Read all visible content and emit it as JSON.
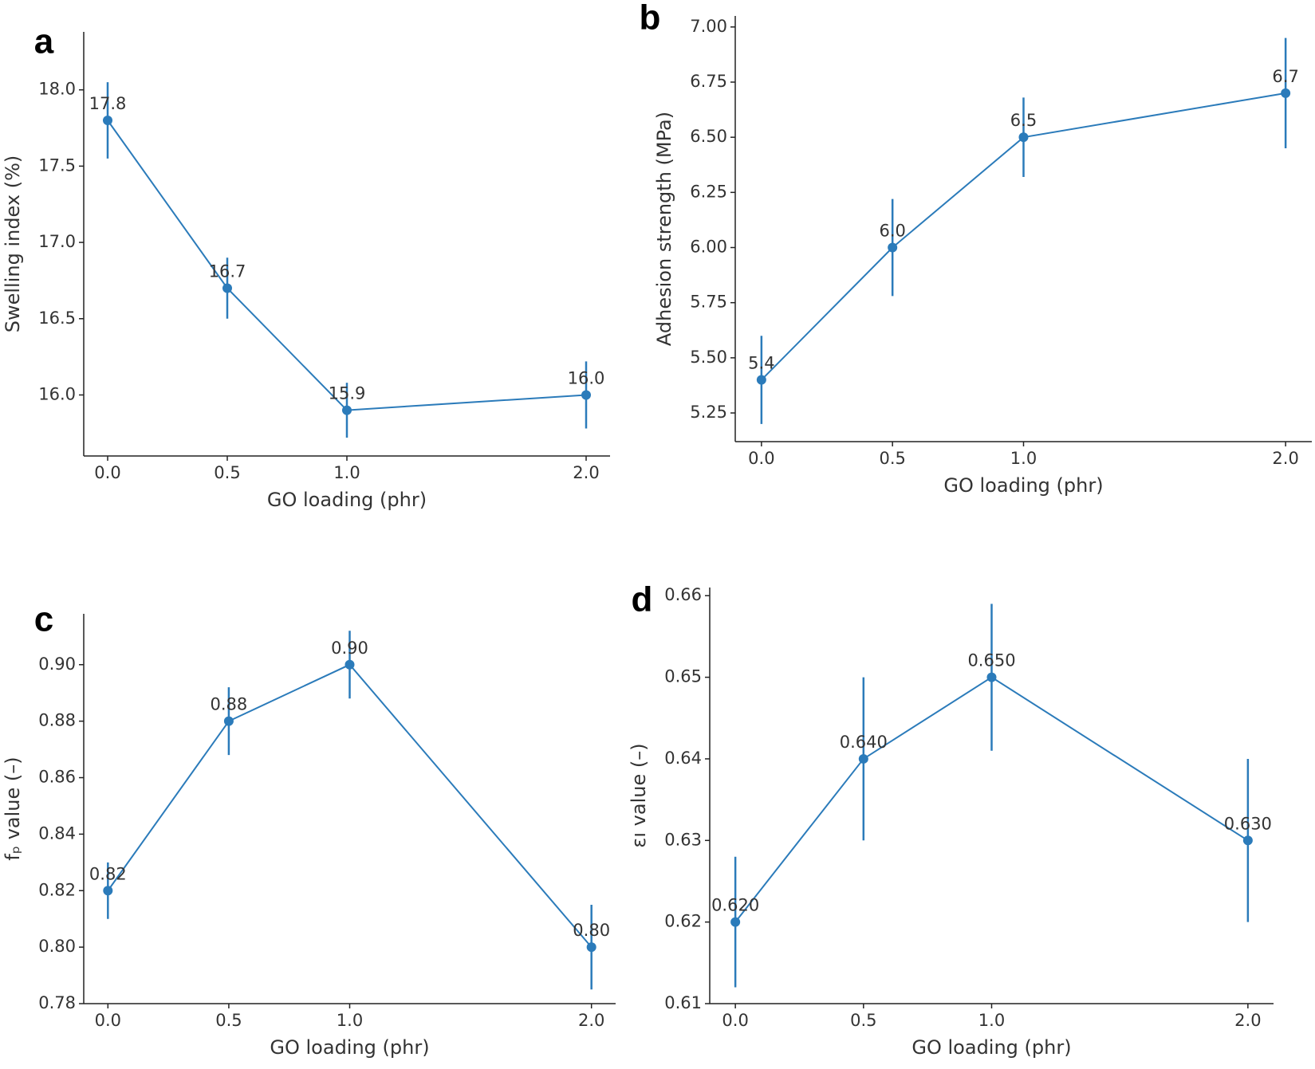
{
  "chart_data": [
    {
      "type": "line",
      "panel_label": "a",
      "xlabel": "GO loading (phr)",
      "ylabel": "Swelling index (%)",
      "x": [
        0,
        0.5,
        1,
        2
      ],
      "values": [
        17.8,
        16.7,
        15.9,
        16.0
      ],
      "errors": [
        0.25,
        0.2,
        0.18,
        0.22
      ],
      "value_labels": [
        "17.8",
        "16.7",
        "15.9",
        "16.0"
      ],
      "color": "#2b7bba",
      "xlim": [
        -0.1,
        2.1
      ],
      "xticks": [
        {
          "value": 0,
          "label": "0.0"
        },
        0.5,
        {
          "value": 1,
          "label": "1.0"
        },
        {
          "value": 2,
          "label": "2.0"
        }
      ],
      "ylim": [
        15.6,
        18.38
      ],
      "yticks": [
        {
          "value": 16,
          "label": "16.0"
        },
        16.5,
        {
          "value": 17,
          "label": "17.0"
        },
        17.5,
        {
          "value": 18,
          "label": "18.0"
        }
      ]
    },
    {
      "type": "line",
      "panel_label": "b",
      "xlabel": "GO loading (phr)",
      "ylabel": "Adhesion strength (MPa)",
      "x": [
        0,
        0.5,
        1,
        2
      ],
      "values": [
        5.4,
        6.0,
        6.5,
        6.7
      ],
      "errors": [
        0.2,
        0.22,
        0.18,
        0.25
      ],
      "value_labels": [
        "5.4",
        "6.0",
        "6.5",
        "6.7"
      ],
      "color": "#2b7bba",
      "xlim": [
        -0.1,
        2.1
      ],
      "xticks": [
        {
          "value": 0,
          "label": "0.0"
        },
        0.5,
        {
          "value": 1,
          "label": "1.0"
        },
        {
          "value": 2,
          "label": "2.0"
        }
      ],
      "ylim": [
        5.12,
        7.05
      ],
      "yticks": [
        5.25,
        {
          "value": 5.5,
          "label": "5.50"
        },
        5.75,
        {
          "value": 6,
          "label": "6.00"
        },
        6.25,
        {
          "value": 6.5,
          "label": "6.50"
        },
        6.75,
        {
          "value": 7,
          "label": "7.00"
        }
      ]
    },
    {
      "type": "line",
      "panel_label": "c",
      "xlabel": "GO loading (phr)",
      "ylabel": "fₚ value (–)",
      "x": [
        0,
        0.5,
        1,
        2
      ],
      "values": [
        0.82,
        0.88,
        0.9,
        0.8
      ],
      "errors": [
        0.01,
        0.012,
        0.012,
        0.015
      ],
      "value_labels": [
        "0.82",
        "0.88",
        "0.90",
        "0.80"
      ],
      "color": "#2b7bba",
      "xlim": [
        -0.1,
        2.1
      ],
      "xticks": [
        {
          "value": 0,
          "label": "0.0"
        },
        0.5,
        {
          "value": 1,
          "label": "1.0"
        },
        {
          "value": 2,
          "label": "2.0"
        }
      ],
      "ylim": [
        0.78,
        0.918
      ],
      "yticks": [
        0.78,
        {
          "value": 0.8,
          "label": "0.80"
        },
        0.82,
        0.84,
        0.86,
        0.88,
        {
          "value": 0.9,
          "label": "0.90"
        }
      ]
    },
    {
      "type": "line",
      "panel_label": "d",
      "xlabel": "GO loading (phr)",
      "ylabel": "εı value (–)",
      "x": [
        0,
        0.5,
        1,
        2
      ],
      "values": [
        0.62,
        0.64,
        0.65,
        0.63
      ],
      "errors": [
        0.008,
        0.01,
        0.009,
        0.01
      ],
      "value_labels": [
        "0.620",
        "0.640",
        "0.650",
        "0.630"
      ],
      "color": "#2b7bba",
      "xlim": [
        -0.1,
        2.1
      ],
      "xticks": [
        {
          "value": 0,
          "label": "0.0"
        },
        0.5,
        {
          "value": 1,
          "label": "1.0"
        },
        {
          "value": 2,
          "label": "2.0"
        }
      ],
      "ylim": [
        0.61,
        0.661
      ],
      "yticks": [
        0.61,
        0.62,
        0.63,
        0.64,
        0.65,
        0.66
      ]
    }
  ]
}
